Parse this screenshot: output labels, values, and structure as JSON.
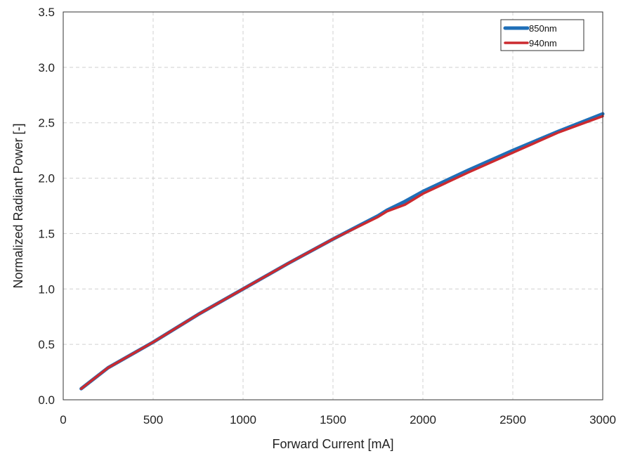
{
  "chart_data": {
    "type": "line",
    "title": "",
    "xlabel": "Forward Current [mA]",
    "ylabel": "Normalized Radiant Power [-]",
    "xlim": [
      0,
      3000
    ],
    "ylim": [
      0,
      3.5
    ],
    "xticks": [
      0,
      500,
      1000,
      1500,
      2000,
      2500,
      3000
    ],
    "yticks": [
      0,
      0.5,
      1.0,
      1.5,
      2.0,
      2.5,
      3.0,
      3.5
    ],
    "xtick_labels": [
      "0",
      "500",
      "1000",
      "1500",
      "2000",
      "2500",
      "3000"
    ],
    "ytick_labels": [
      "0.0",
      "0.5",
      "1.0",
      "1.5",
      "2.0",
      "2.5",
      "3.0",
      "3.5"
    ],
    "grid": true,
    "legend_position": "top-right",
    "series": [
      {
        "name": "850nm",
        "color": "#1f6fb8",
        "x": [
          100,
          250,
          500,
          750,
          1000,
          1250,
          1500,
          1750,
          1800,
          1900,
          2000,
          2250,
          2500,
          2750,
          3000
        ],
        "y": [
          0.1,
          0.29,
          0.52,
          0.77,
          1.0,
          1.23,
          1.45,
          1.66,
          1.71,
          1.79,
          1.88,
          2.07,
          2.25,
          2.42,
          2.58
        ]
      },
      {
        "name": "940nm",
        "color": "#cc2a2f",
        "x": [
          100,
          250,
          500,
          750,
          1000,
          1250,
          1500,
          1750,
          1800,
          1900,
          2000,
          2250,
          2500,
          2750,
          3000
        ],
        "y": [
          0.1,
          0.29,
          0.52,
          0.77,
          1.0,
          1.23,
          1.45,
          1.65,
          1.7,
          1.76,
          1.86,
          2.05,
          2.23,
          2.41,
          2.56
        ]
      }
    ]
  }
}
